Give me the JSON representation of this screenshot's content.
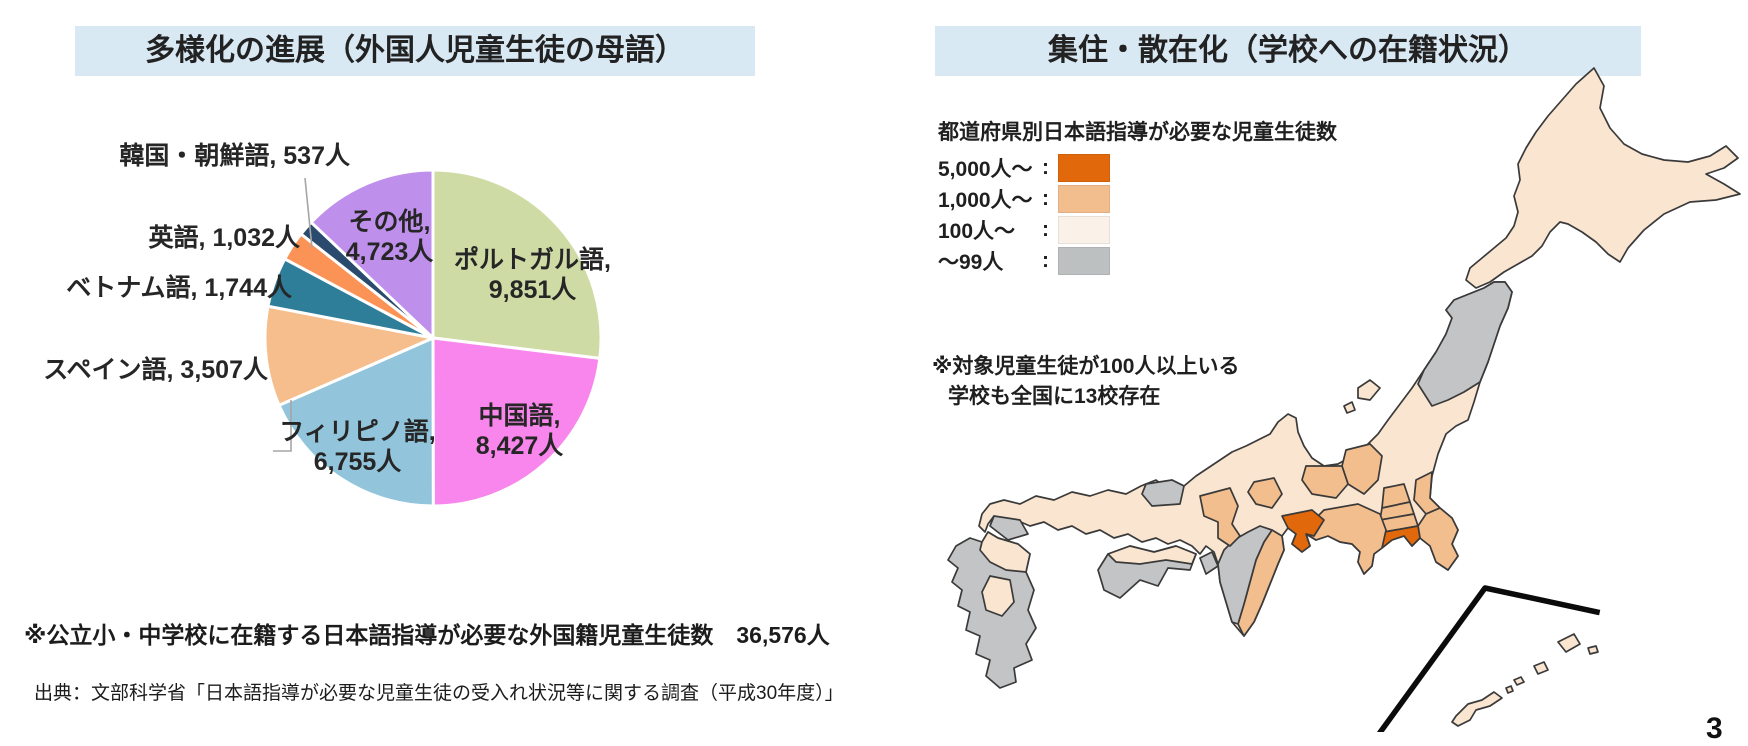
{
  "page": {
    "page_number": "3"
  },
  "left_panel": {
    "title": "多様化の進展（外国人児童生徒の母語）",
    "footnote": "※公立小・中学校に在籍する日本語指導が必要な外国籍児童生徒数　36,576人",
    "source": "出典：文部科学省「日本語指導が必要な児童生徒の受入れ状況等に関する調査（平成30年度）」"
  },
  "right_panel": {
    "title": "集住・散在化（学校への在籍状況）",
    "legend_title": "都道府県別日本語指導が必要な児童生徒数",
    "legend_separator": ":",
    "legend": [
      {
        "label": "5,000人～",
        "color": "#E2690B"
      },
      {
        "label": "1,000人～",
        "color": "#F3BE8E"
      },
      {
        "label": "100人～",
        "color": "#FAF1E8"
      },
      {
        "label": "～99人",
        "color": "#BDC0C1"
      }
    ],
    "note_line1": "※対象児童生徒が100人以上いる",
    "note_line2": "学校も全国に13校存在"
  },
  "chart_data": [
    {
      "type": "pie",
      "title": "多様化の進展（外国人児童生徒の母語）",
      "unit": "人",
      "total": 36576,
      "start_angle_deg": 0,
      "direction": "clockwise",
      "slices": [
        {
          "label": "ポルトガル語",
          "value": 9851,
          "display": [
            "ポルトガル語,",
            "9,851人"
          ],
          "color": "#CFDBA5",
          "placement": "inside"
        },
        {
          "label": "中国語",
          "value": 8427,
          "display": [
            "中国語,",
            "8,427人"
          ],
          "color": "#F986EC",
          "placement": "inside"
        },
        {
          "label": "フィリピノ語",
          "value": 6755,
          "display": [
            "フィリピノ語,",
            "6,755人"
          ],
          "color": "#92C5DB",
          "placement": "inside"
        },
        {
          "label": "スペイン語",
          "value": 3507,
          "display": [
            "スペイン語, 3,507人"
          ],
          "color": "#F5BE8C",
          "placement": "outside"
        },
        {
          "label": "ベトナム語",
          "value": 1744,
          "display": [
            "ベトナム語, 1,744人"
          ],
          "color": "#2E7D99",
          "placement": "outside"
        },
        {
          "label": "英語",
          "value": 1032,
          "display": [
            "英語, 1,032人"
          ],
          "color": "#FB9356",
          "placement": "outside"
        },
        {
          "label": "韓国・朝鮮語",
          "value": 537,
          "display": [
            "韓国・朝鮮語, 537人"
          ],
          "color": "#2A4B6E",
          "placement": "outside"
        },
        {
          "label": "その他",
          "value": 4723,
          "display": [
            "その他,",
            "4,723人"
          ],
          "color": "#BE90EC",
          "placement": "inside"
        }
      ]
    },
    {
      "type": "choropleth",
      "region_set": "Japan prefectures",
      "legend_title": "都道府県別日本語指導が必要な児童生徒数",
      "categories": [
        {
          "label": "5,000人～",
          "color": "#E2690B"
        },
        {
          "label": "1,000人～",
          "color": "#F3BE8E"
        },
        {
          "label": "100人～",
          "color": "#FAE5D0"
        },
        {
          "label": "～99人",
          "color": "#C2C4C5"
        }
      ],
      "note": "※対象児童生徒が100人以上いる学校も全国に13校存在",
      "category_colors": {
        "5000": "#E2690B",
        "1000": "#F3BE8E",
        "100": "#FAE5D0",
        "99": "#C2C4C5"
      },
      "regions": [
        {
          "id": "hokkaido",
          "category": "100"
        },
        {
          "id": "honshu",
          "category": "100"
        },
        {
          "id": "tohoku-north",
          "category": "99"
        },
        {
          "id": "ibaraki",
          "category": "1000"
        },
        {
          "id": "gunma",
          "category": "1000"
        },
        {
          "id": "saitama",
          "category": "1000"
        },
        {
          "id": "tokyo",
          "category": "1000"
        },
        {
          "id": "chiba",
          "category": "1000"
        },
        {
          "id": "kanagawa",
          "category": "5000"
        },
        {
          "id": "nagano",
          "category": "1000"
        },
        {
          "id": "gifu",
          "category": "1000"
        },
        {
          "id": "shizuoka",
          "category": "1000"
        },
        {
          "id": "aichi",
          "category": "5000"
        },
        {
          "id": "mie",
          "category": "1000"
        },
        {
          "id": "shiga",
          "category": "1000"
        },
        {
          "id": "kyoto-osaka",
          "category": "1000"
        },
        {
          "id": "nara-wakayama",
          "category": "99"
        },
        {
          "id": "tottori",
          "category": "99"
        },
        {
          "id": "yamaguchi-west",
          "category": "99"
        },
        {
          "id": "shikoku",
          "category": "99"
        },
        {
          "id": "shikoku-north",
          "category": "100"
        },
        {
          "id": "kyushu",
          "category": "99"
        },
        {
          "id": "kyushu-north",
          "category": "100"
        },
        {
          "id": "kyushu-center",
          "category": "100"
        },
        {
          "id": "sado",
          "category": "100"
        },
        {
          "id": "sado-small",
          "category": "100"
        },
        {
          "id": "awaji",
          "category": "99"
        },
        {
          "id": "okinawa",
          "category": "100"
        }
      ]
    }
  ]
}
